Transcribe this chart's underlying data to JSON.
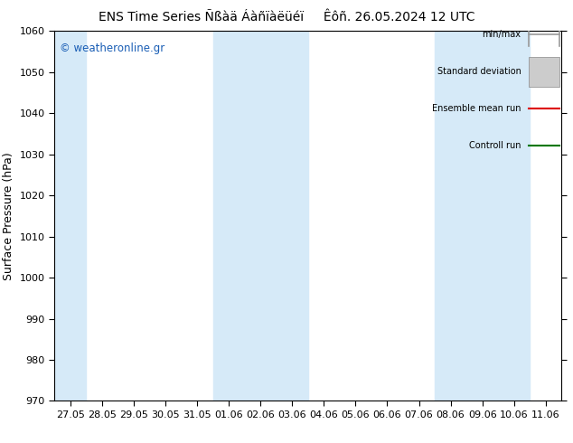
{
  "title": "ENS Time Series Ñßàä Áàñïàëüéï     Êôñ. 26.05.2024 12 UTC",
  "ylabel": "Surface Pressure (hPa)",
  "ylim": [
    970,
    1060
  ],
  "yticks": [
    970,
    980,
    990,
    1000,
    1010,
    1020,
    1030,
    1040,
    1050,
    1060
  ],
  "x_labels": [
    "27.05",
    "28.05",
    "29.05",
    "30.05",
    "31.05",
    "01.06",
    "02.06",
    "03.06",
    "04.06",
    "05.06",
    "06.06",
    "07.06",
    "08.06",
    "09.06",
    "10.06",
    "11.06"
  ],
  "bg_color": "#ffffff",
  "plot_bg_color": "#ffffff",
  "stripe_color": "#d6eaf8",
  "stripe_indices": [
    0,
    5,
    6,
    7,
    12,
    13,
    14
  ],
  "watermark": "© weatheronline.gr",
  "watermark_color": "#1a5eb5",
  "title_fontsize": 10,
  "tick_fontsize": 8,
  "ylabel_fontsize": 9,
  "legend_labels": [
    "min/max",
    "Standard deviation",
    "Ensemble mean run",
    "Controll run"
  ],
  "legend_line_colors": [
    "#999999",
    "#cccccc",
    "#dd0000",
    "#007700"
  ],
  "legend_line_styles": [
    "minmax",
    "rect",
    "line",
    "line"
  ]
}
